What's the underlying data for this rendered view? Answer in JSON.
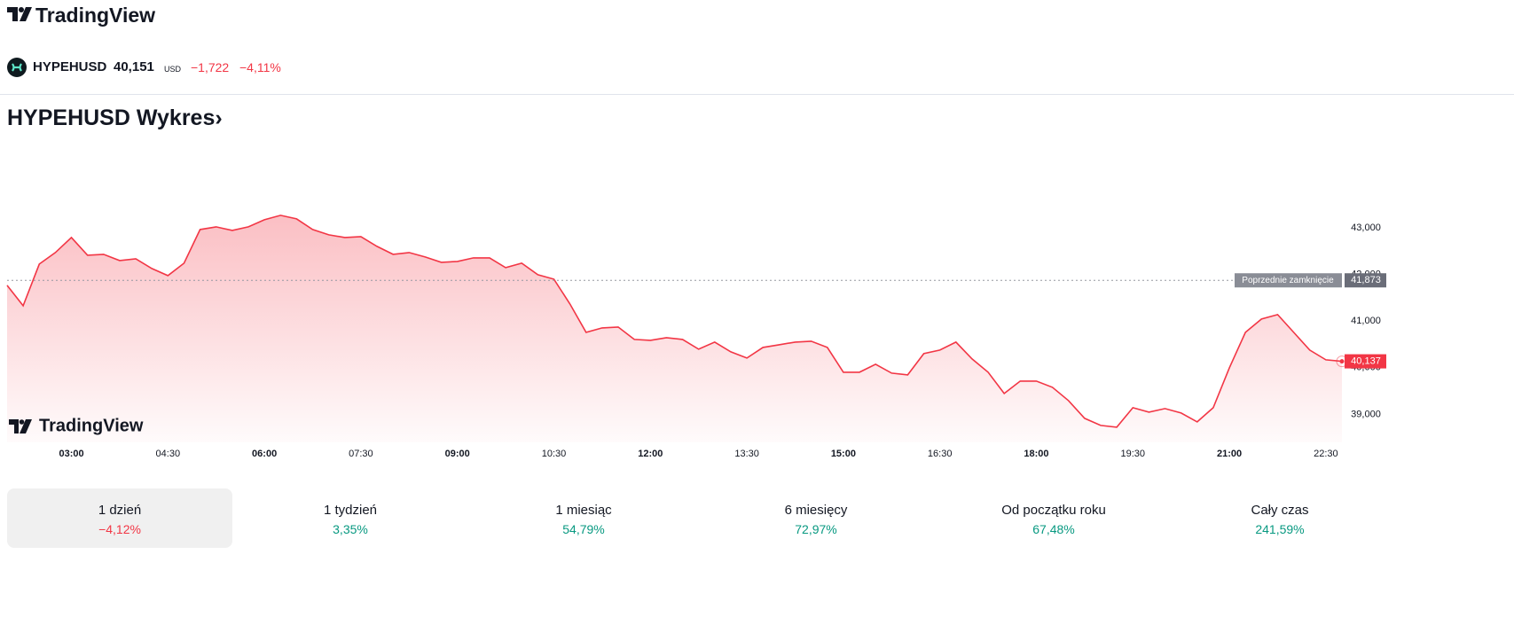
{
  "header": {
    "logo": "TradingView"
  },
  "symbol": {
    "name": "HYPEHUSD",
    "price": "40,151",
    "currency": "USD",
    "change": "−1,722",
    "change_percent": "−4,11%"
  },
  "title": "HYPEHUSD Wykres",
  "chart_data": {
    "type": "line",
    "color": "#f23645",
    "watermark": "TradingView",
    "x": [
      2,
      2.25,
      2.5,
      2.75,
      3,
      3.25,
      3.5,
      3.75,
      4,
      4.25,
      4.5,
      4.75,
      5,
      5.25,
      5.5,
      5.75,
      6,
      6.25,
      6.5,
      6.75,
      7,
      7.25,
      7.5,
      7.75,
      8,
      8.25,
      8.5,
      8.75,
      9,
      9.25,
      9.5,
      9.75,
      10,
      10.25,
      10.5,
      10.75,
      11,
      11.25,
      11.5,
      11.75,
      12,
      12.25,
      12.5,
      12.75,
      13,
      13.25,
      13.5,
      13.75,
      14,
      14.25,
      14.5,
      14.75,
      15,
      15.25,
      15.5,
      15.75,
      16,
      16.25,
      16.5,
      16.75,
      17,
      17.25,
      17.5,
      17.75,
      18,
      18.25,
      18.5,
      18.75,
      19,
      19.25,
      19.5,
      19.75,
      20,
      20.25,
      20.5,
      20.75,
      21,
      21.25,
      21.5,
      21.75,
      22,
      22.25,
      22.5,
      22.75
    ],
    "values": [
      41765,
      41328,
      42221,
      42468,
      42791,
      42411,
      42430,
      42297,
      42335,
      42126,
      41974,
      42240,
      42962,
      43019,
      42943,
      43019,
      43171,
      43266,
      43190,
      42962,
      42848,
      42791,
      42810,
      42601,
      42430,
      42468,
      42373,
      42259,
      42278,
      42354,
      42354,
      42145,
      42240,
      41993,
      41898,
      41366,
      40758,
      40853,
      40872,
      40606,
      40587,
      40644,
      40606,
      40397,
      40549,
      40340,
      40207,
      40435,
      40492,
      40549,
      40568,
      40435,
      39903,
      39903,
      40074,
      39884,
      39846,
      40302,
      40378,
      40549,
      40188,
      39903,
      39447,
      39713,
      39713,
      39580,
      39295,
      38915,
      38763,
      38725,
      39143,
      39048,
      39124,
      39029,
      38839,
      39143,
      39998,
      40758,
      41043,
      41138,
      40758,
      40378,
      40169,
      40137
    ],
    "xlim": [
      2,
      22.75
    ],
    "xticks": [
      {
        "value": 3,
        "label": "03:00"
      },
      {
        "value": 4.5,
        "label": "04:30"
      },
      {
        "value": 6,
        "label": "06:00"
      },
      {
        "value": 7.5,
        "label": "07:30"
      },
      {
        "value": 9,
        "label": "09:00"
      },
      {
        "value": 10.5,
        "label": "10:30"
      },
      {
        "value": 12,
        "label": "12:00"
      },
      {
        "value": 13.5,
        "label": "13:30"
      },
      {
        "value": 15,
        "label": "15:00"
      },
      {
        "value": 16.5,
        "label": "16:30"
      },
      {
        "value": 18,
        "label": "18:00"
      },
      {
        "value": 19.5,
        "label": "19:30"
      },
      {
        "value": 21,
        "label": "21:00"
      },
      {
        "value": 22.5,
        "label": "22:30"
      }
    ],
    "ylim": [
      38400,
      44500
    ],
    "yticks": [
      {
        "value": 39000,
        "label": "39,000"
      },
      {
        "value": 40000,
        "label": "40,000"
      },
      {
        "value": 41000,
        "label": "41,000"
      },
      {
        "value": 42000,
        "label": "42,000"
      },
      {
        "value": 43000,
        "label": "43,000"
      }
    ],
    "previous_close": {
      "name": "Poprzednie zamknięcie",
      "value": 41873,
      "label": "41,873"
    },
    "last_price": {
      "value": 40137,
      "label": "40,137"
    }
  },
  "periods": [
    {
      "label": "1 dzień",
      "change": "−4,12%"
    },
    {
      "label": "1 tydzień",
      "change": "3,35%"
    },
    {
      "label": "1 miesiąc",
      "change": "54,79%"
    },
    {
      "label": "6 miesięcy",
      "change": "72,97%"
    },
    {
      "label": "Od początku roku",
      "change": "67,48%"
    },
    {
      "label": "Cały czas",
      "change": "241,59%"
    }
  ]
}
